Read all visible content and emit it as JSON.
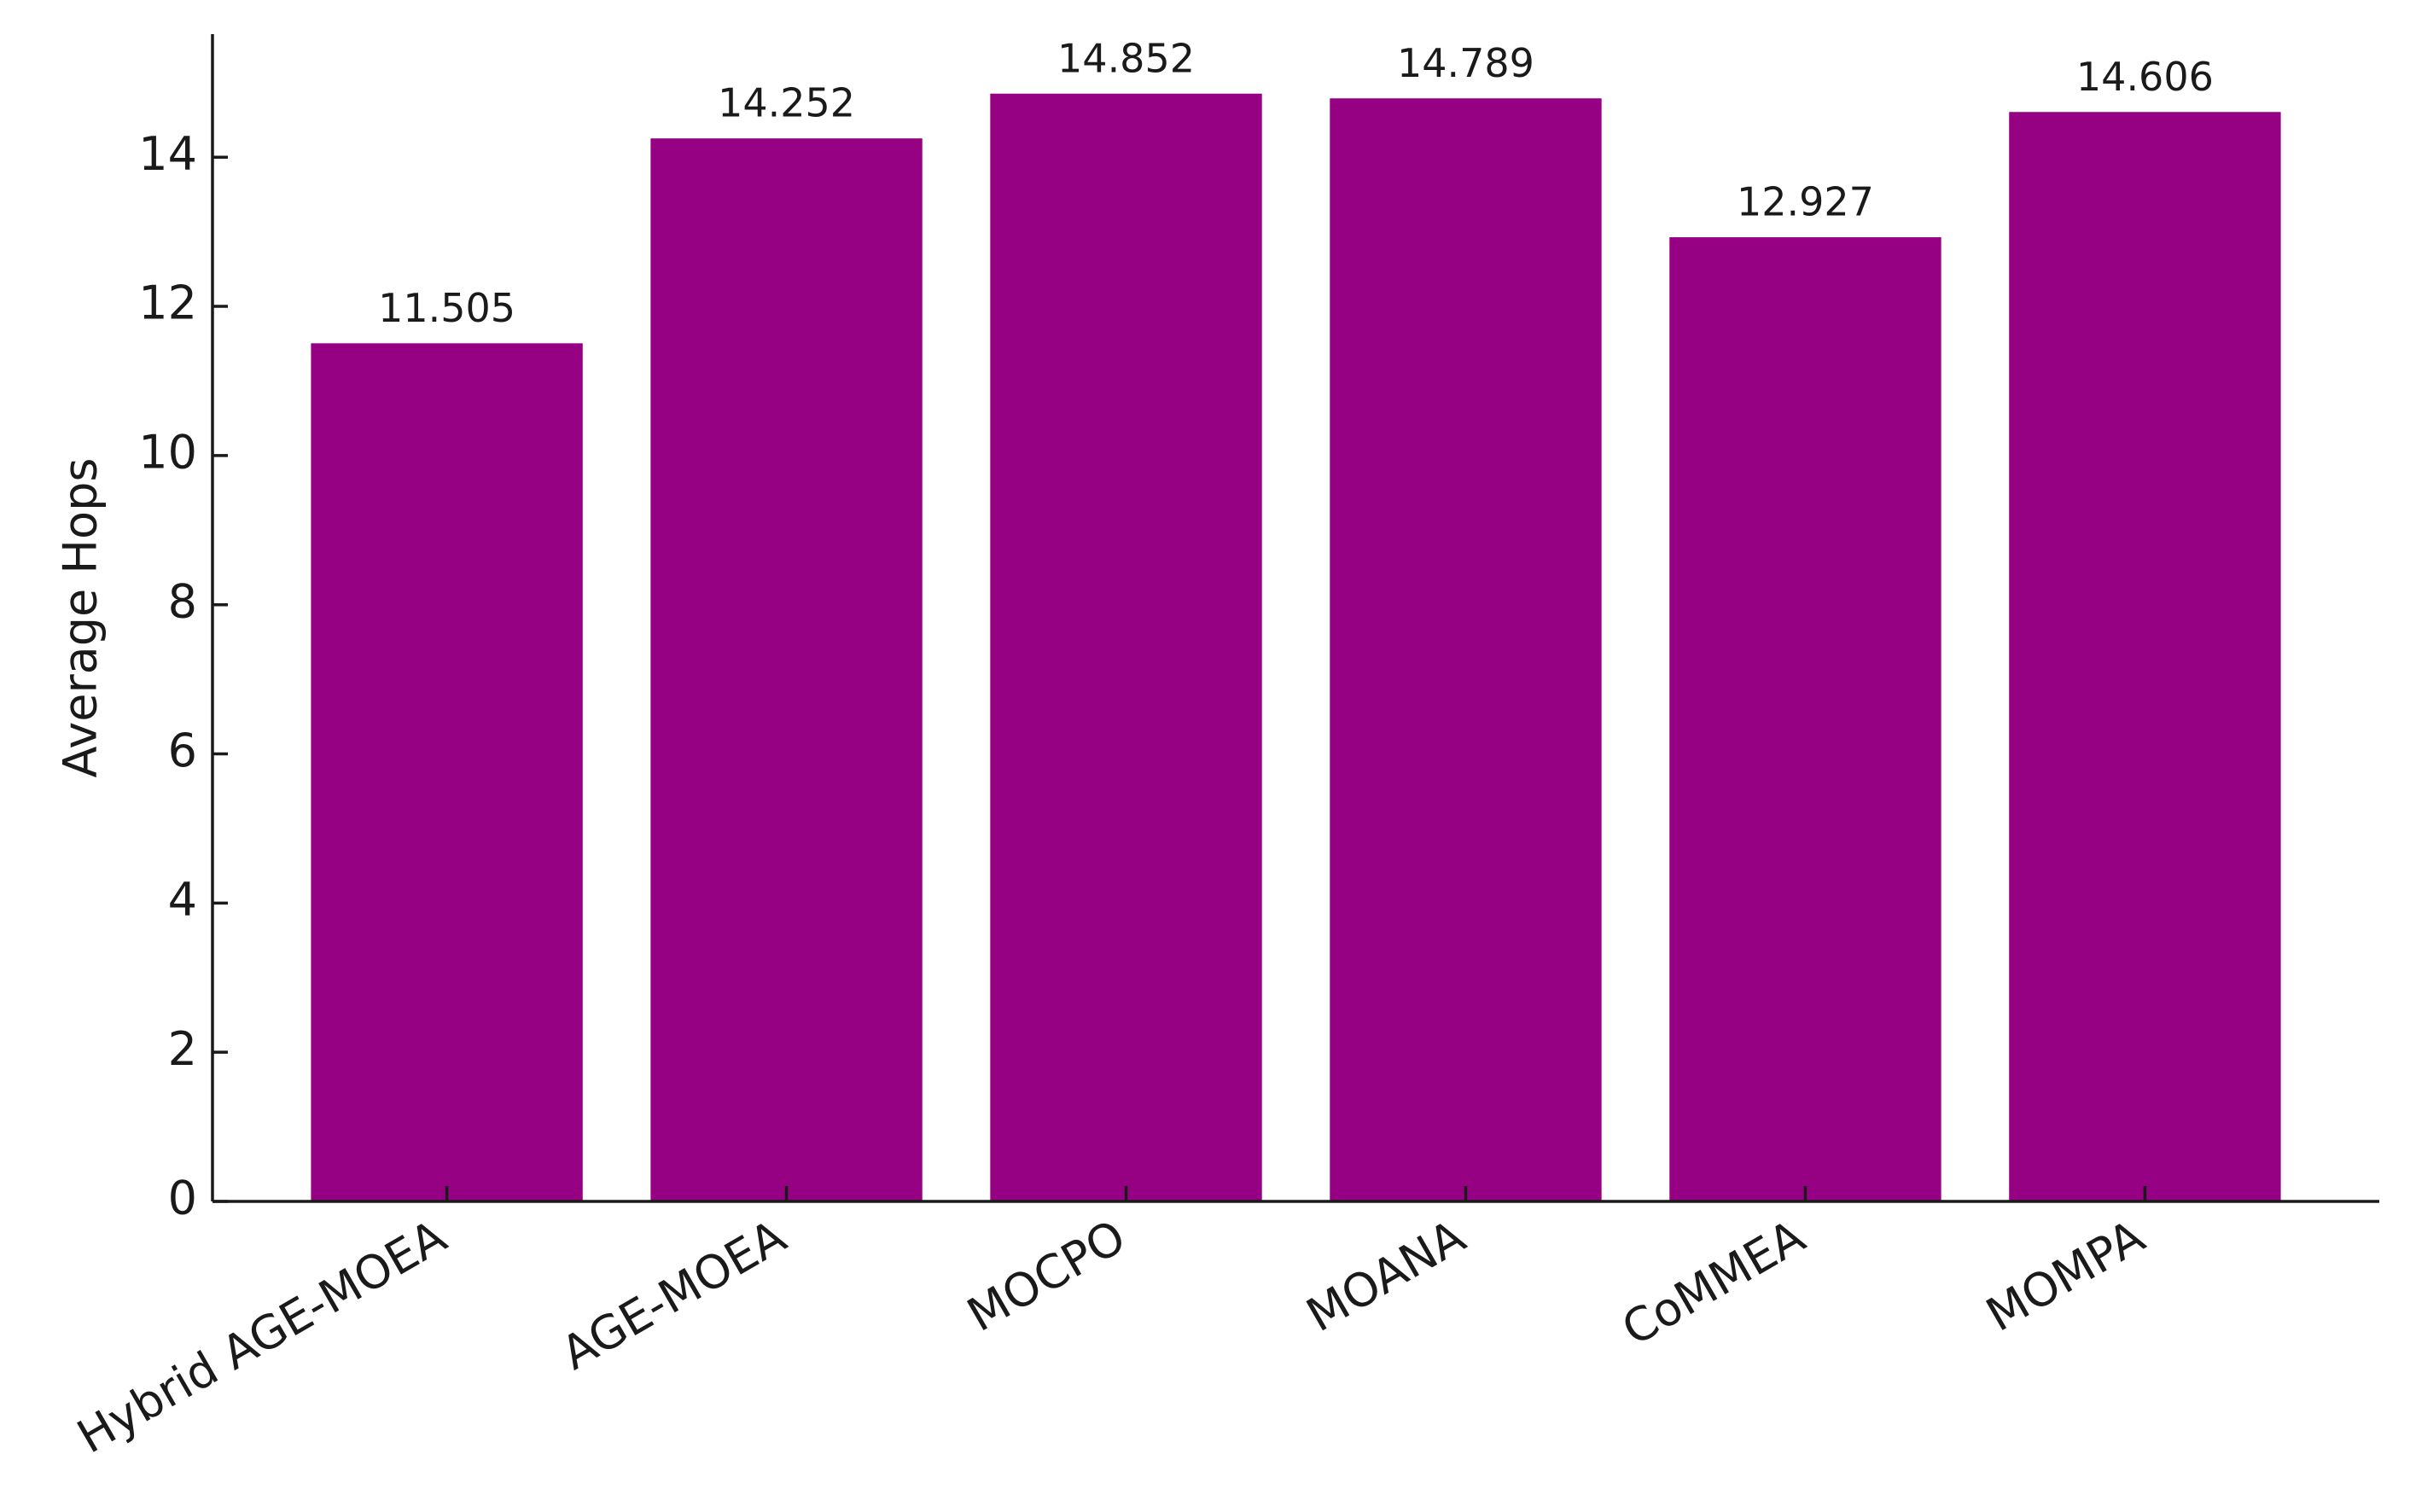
{
  "chart_data": {
    "type": "bar",
    "y_label": "Average Hops",
    "categories": [
      "Hybrid AGE-MOEA",
      "AGE-MOEA",
      "MOCPO",
      "MOANA",
      "CoMMEA",
      "MOMPA"
    ],
    "values": [
      11.505,
      14.252,
      14.852,
      14.789,
      12.927,
      14.606
    ],
    "color": "#960082",
    "ylim": [
      0,
      15.65
    ],
    "yticks": [
      0,
      2,
      4,
      6,
      8,
      10,
      12,
      14
    ],
    "grid": false
  }
}
